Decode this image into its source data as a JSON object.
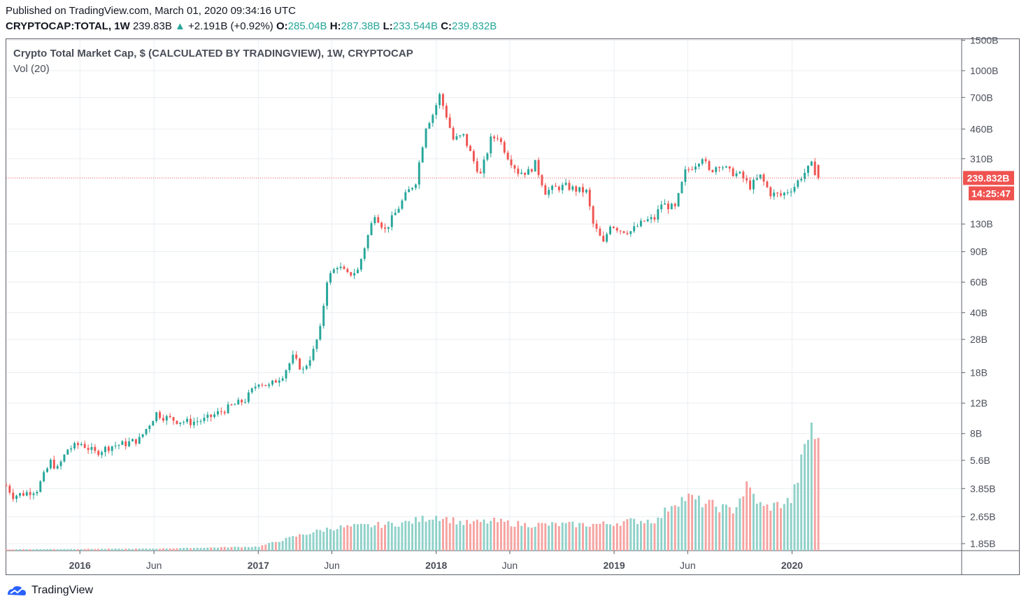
{
  "header": {
    "published": "Published on TradingView.com, March 01, 2020 09:34:16 UTC",
    "symbol": "CRYPTOCAP:TOTAL, 1W",
    "last": "239.83B",
    "change": "+2.191B (+0.92%)",
    "o_label": "O:",
    "o_value": "285.04B",
    "h_label": "H:",
    "h_value": "287.38B",
    "l_label": "L:",
    "l_value": "233.544B",
    "c_label": "C:",
    "c_value": "239.832B"
  },
  "legend": {
    "title": "Crypto Total Market Cap, $ (CALCULATED BY TRADINGVIEW), 1W, CRYPTOCAP",
    "volume": "Vol (20)"
  },
  "price_tag": {
    "value": "239.832B",
    "countdown": "14:25:47"
  },
  "footer": {
    "brand": "TradingView"
  },
  "colors": {
    "up": "#26a69a",
    "down": "#ef5350",
    "vol_up": "#8fd1c9",
    "vol_down": "#f5a3a1",
    "grid": "#e9eef2"
  },
  "chart_data": {
    "type": "candlestick",
    "log_scale": true,
    "price_axis_labels": [
      "1500B",
      "1000B",
      "700B",
      "460B",
      "310B",
      "130B",
      "90B",
      "60B",
      "40B",
      "28B",
      "18B",
      "12B",
      "8B",
      "5.6B",
      "3.85B",
      "2.65B",
      "1.85B"
    ],
    "price_axis_values": [
      1500,
      1000,
      700,
      460,
      310,
      130,
      90,
      60,
      40,
      28,
      18,
      12,
      8,
      5.6,
      3.85,
      2.65,
      1.85
    ],
    "time_axis_labels": [
      "2016",
      "Jun",
      "2017",
      "Jun",
      "2018",
      "Jun",
      "2019",
      "Jun",
      "2020"
    ],
    "time_axis_dates": [
      "2016-01-01",
      "2016-06-01",
      "2017-01-01",
      "2017-06-01",
      "2018-01-01",
      "2018-06-01",
      "2019-01-01",
      "2019-06-01",
      "2020-01-01"
    ],
    "x_range": [
      "2015-08-03",
      "2020-12-14"
    ],
    "grid": true,
    "series": [
      {
        "name": "Crypto Total Market Cap",
        "close_points": [
          [
            "2015-08-03",
            4.0
          ],
          [
            "2015-08-17",
            3.5
          ],
          [
            "2015-09-07",
            3.6
          ],
          [
            "2015-10-05",
            3.8
          ],
          [
            "2015-11-02",
            5.5
          ],
          [
            "2015-11-16",
            5.0
          ],
          [
            "2015-12-07",
            6.5
          ],
          [
            "2016-01-04",
            7.0
          ],
          [
            "2016-02-01",
            6.2
          ],
          [
            "2016-03-07",
            6.8
          ],
          [
            "2016-04-04",
            7.0
          ],
          [
            "2016-05-02",
            7.4
          ],
          [
            "2016-06-06",
            10.5
          ],
          [
            "2016-06-20",
            10.0
          ],
          [
            "2016-07-18",
            9.5
          ],
          [
            "2016-08-15",
            9.3
          ],
          [
            "2016-09-12",
            9.6
          ],
          [
            "2016-10-10",
            10.5
          ],
          [
            "2016-11-07",
            11.5
          ],
          [
            "2016-12-05",
            12.5
          ],
          [
            "2017-01-02",
            16.0
          ],
          [
            "2017-01-23",
            15.0
          ],
          [
            "2017-02-20",
            17.5
          ],
          [
            "2017-03-13",
            22.0
          ],
          [
            "2017-04-03",
            18.5
          ],
          [
            "2017-04-24",
            24.0
          ],
          [
            "2017-05-08",
            32.0
          ],
          [
            "2017-05-22",
            62.0
          ],
          [
            "2017-06-12",
            75.0
          ],
          [
            "2017-07-03",
            66.0
          ],
          [
            "2017-07-24",
            70.0
          ],
          [
            "2017-08-07",
            96.0
          ],
          [
            "2017-08-28",
            150.0
          ],
          [
            "2017-09-18",
            120.0
          ],
          [
            "2017-10-09",
            150.0
          ],
          [
            "2017-10-30",
            190.0
          ],
          [
            "2017-11-20",
            230.0
          ],
          [
            "2017-12-11",
            480.0
          ],
          [
            "2017-12-25",
            560.0
          ],
          [
            "2018-01-08",
            720.0
          ],
          [
            "2018-01-22",
            550.0
          ],
          [
            "2018-02-05",
            400.0
          ],
          [
            "2018-02-26",
            420.0
          ],
          [
            "2018-03-19",
            300.0
          ],
          [
            "2018-04-02",
            250.0
          ],
          [
            "2018-04-23",
            400.0
          ],
          [
            "2018-05-07",
            420.0
          ],
          [
            "2018-05-28",
            320.0
          ],
          [
            "2018-06-18",
            260.0
          ],
          [
            "2018-07-09",
            260.0
          ],
          [
            "2018-07-23",
            290.0
          ],
          [
            "2018-08-13",
            200.0
          ],
          [
            "2018-09-03",
            210.0
          ],
          [
            "2018-09-24",
            215.0
          ],
          [
            "2018-10-15",
            205.0
          ],
          [
            "2018-11-05",
            200.0
          ],
          [
            "2018-11-19",
            130.0
          ],
          [
            "2018-12-10",
            100.0
          ],
          [
            "2018-12-24",
            130.0
          ],
          [
            "2019-01-14",
            120.0
          ],
          [
            "2019-02-04",
            118.0
          ],
          [
            "2019-03-04",
            135.0
          ],
          [
            "2019-03-25",
            140.0
          ],
          [
            "2019-04-08",
            170.0
          ],
          [
            "2019-05-06",
            160.0
          ],
          [
            "2019-05-27",
            260.0
          ],
          [
            "2019-06-17",
            290.0
          ],
          [
            "2019-07-01",
            320.0
          ],
          [
            "2019-07-15",
            260.0
          ],
          [
            "2019-08-05",
            290.0
          ],
          [
            "2019-08-26",
            260.0
          ],
          [
            "2019-09-16",
            250.0
          ],
          [
            "2019-10-07",
            215.0
          ],
          [
            "2019-10-28",
            245.0
          ],
          [
            "2019-11-18",
            195.0
          ],
          [
            "2019-12-09",
            190.0
          ],
          [
            "2020-01-06",
            215.0
          ],
          [
            "2020-01-20",
            245.0
          ],
          [
            "2020-02-10",
            285.0
          ],
          [
            "2020-02-24",
            239.83
          ]
        ]
      }
    ],
    "volume": {
      "name": "Vol (20)",
      "points": [
        [
          "2015-08-03",
          0.1
        ],
        [
          "2016-06-01",
          0.15
        ],
        [
          "2017-01-01",
          0.3
        ],
        [
          "2017-04-01",
          1.2
        ],
        [
          "2017-06-01",
          1.7
        ],
        [
          "2017-09-01",
          1.9
        ],
        [
          "2017-11-01",
          2.1
        ],
        [
          "2018-01-01",
          2.6
        ],
        [
          "2018-03-01",
          2.05
        ],
        [
          "2018-05-01",
          2.2
        ],
        [
          "2018-07-01",
          1.95
        ],
        [
          "2018-09-01",
          1.95
        ],
        [
          "2018-11-01",
          1.95
        ],
        [
          "2018-12-15",
          2.0
        ],
        [
          "2019-02-01",
          2.2
        ],
        [
          "2019-04-01",
          2.3
        ],
        [
          "2019-05-01",
          3.6
        ],
        [
          "2019-06-01",
          4.0
        ],
        [
          "2019-07-01",
          3.6
        ],
        [
          "2019-08-01",
          3.3
        ],
        [
          "2019-09-01",
          3.0
        ],
        [
          "2019-10-01",
          4.8
        ],
        [
          "2019-11-01",
          3.2
        ],
        [
          "2019-12-01",
          3.4
        ],
        [
          "2020-01-01",
          3.8
        ],
        [
          "2020-01-20",
          6.5
        ],
        [
          "2020-02-10",
          9.5
        ],
        [
          "2020-02-24",
          7.8
        ]
      ]
    }
  }
}
